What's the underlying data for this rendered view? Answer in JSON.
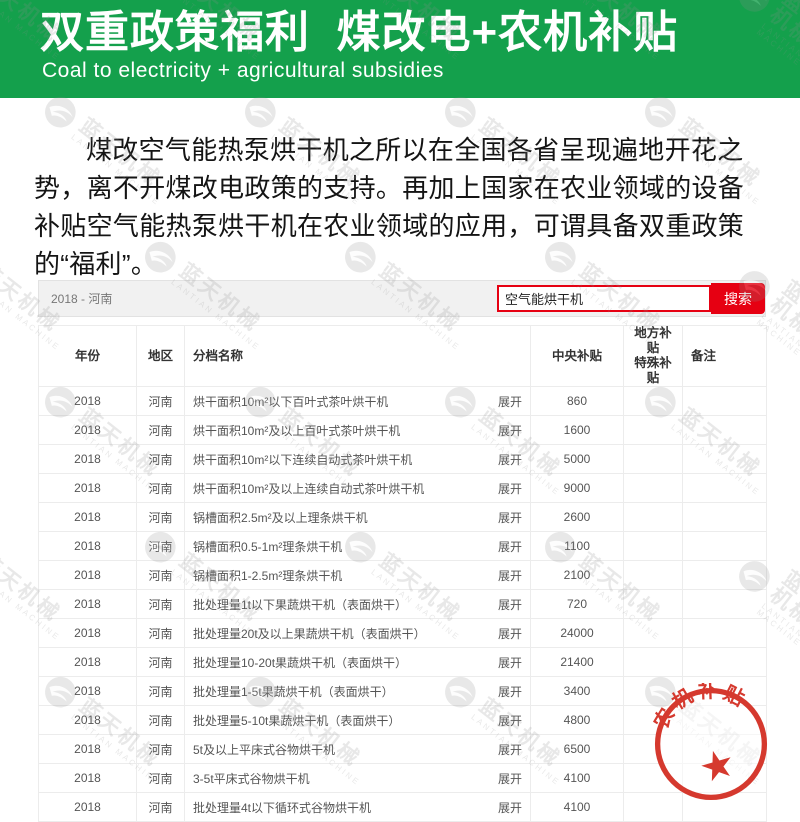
{
  "colors": {
    "green": "#14a04c",
    "red": "#e60012",
    "stamp": "#d5392e"
  },
  "banner": {
    "title": "双重政策福利  煤改电+农机补贴",
    "subtitle": "Coal to electricity + agricultural subsidies"
  },
  "intro": {
    "text": "煤改空气能热泵烘干机之所以在全国各省呈现遍地开花之势，离不开煤改电政策的支持。再加上国家在农业领域的设备补贴空气能热泵烘干机在农业领域的应用，可谓具备双重政策的“福利”。"
  },
  "table": {
    "breadcrumb": "2018 - 河南",
    "search": {
      "value": "空气能烘干机",
      "button_label": "搜索"
    },
    "expand_label": "展开",
    "columns": [
      {
        "key": "year",
        "label": "年份"
      },
      {
        "key": "region",
        "label": "地区"
      },
      {
        "key": "name",
        "label": "分档名称"
      },
      {
        "key": "central",
        "label": "中央补贴"
      },
      {
        "key": "local",
        "label": "地方补贴",
        "label2": "特殊补贴"
      },
      {
        "key": "note",
        "label": "备注"
      }
    ],
    "rows": [
      {
        "year": "2018",
        "region": "河南",
        "name": "烘干面积10m²以下百叶式茶叶烘干机",
        "central": "860",
        "local": "",
        "note": ""
      },
      {
        "year": "2018",
        "region": "河南",
        "name": "烘干面积10m²及以上百叶式茶叶烘干机",
        "central": "1600",
        "local": "",
        "note": ""
      },
      {
        "year": "2018",
        "region": "河南",
        "name": "烘干面积10m²以下连续自动式茶叶烘干机",
        "central": "5000",
        "local": "",
        "note": ""
      },
      {
        "year": "2018",
        "region": "河南",
        "name": "烘干面积10m²及以上连续自动式茶叶烘干机",
        "central": "9000",
        "local": "",
        "note": ""
      },
      {
        "year": "2018",
        "region": "河南",
        "name": "锅槽面积2.5m²及以上理条烘干机",
        "central": "2600",
        "local": "",
        "note": ""
      },
      {
        "year": "2018",
        "region": "河南",
        "name": "锅槽面积0.5-1m²理条烘干机",
        "central": "1100",
        "local": "",
        "note": ""
      },
      {
        "year": "2018",
        "region": "河南",
        "name": "锅槽面积1-2.5m²理条烘干机",
        "central": "2100",
        "local": "",
        "note": ""
      },
      {
        "year": "2018",
        "region": "河南",
        "name": "批处理量1t以下果蔬烘干机（表面烘干）",
        "central": "720",
        "local": "",
        "note": ""
      },
      {
        "year": "2018",
        "region": "河南",
        "name": "批处理量20t及以上果蔬烘干机（表面烘干）",
        "central": "24000",
        "local": "",
        "note": ""
      },
      {
        "year": "2018",
        "region": "河南",
        "name": "批处理量10-20t果蔬烘干机（表面烘干）",
        "central": "21400",
        "local": "",
        "note": ""
      },
      {
        "year": "2018",
        "region": "河南",
        "name": "批处理量1-5t果蔬烘干机（表面烘干）",
        "central": "3400",
        "local": "",
        "note": ""
      },
      {
        "year": "2018",
        "region": "河南",
        "name": "批处理量5-10t果蔬烘干机（表面烘干）",
        "central": "4800",
        "local": "",
        "note": ""
      },
      {
        "year": "2018",
        "region": "河南",
        "name": "5t及以上平床式谷物烘干机",
        "central": "6500",
        "local": "",
        "note": ""
      },
      {
        "year": "2018",
        "region": "河南",
        "name": "3-5t平床式谷物烘干机",
        "central": "4100",
        "local": "",
        "note": ""
      },
      {
        "year": "2018",
        "region": "河南",
        "name": "批处理量4t以下循环式谷物烘干机",
        "central": "4100",
        "local": "",
        "note": ""
      }
    ]
  },
  "watermark": {
    "text": "蓝天机械",
    "subtext": "LANTIAN MACHINE"
  },
  "stamp": {
    "text": "农机补贴",
    "star": "★"
  }
}
